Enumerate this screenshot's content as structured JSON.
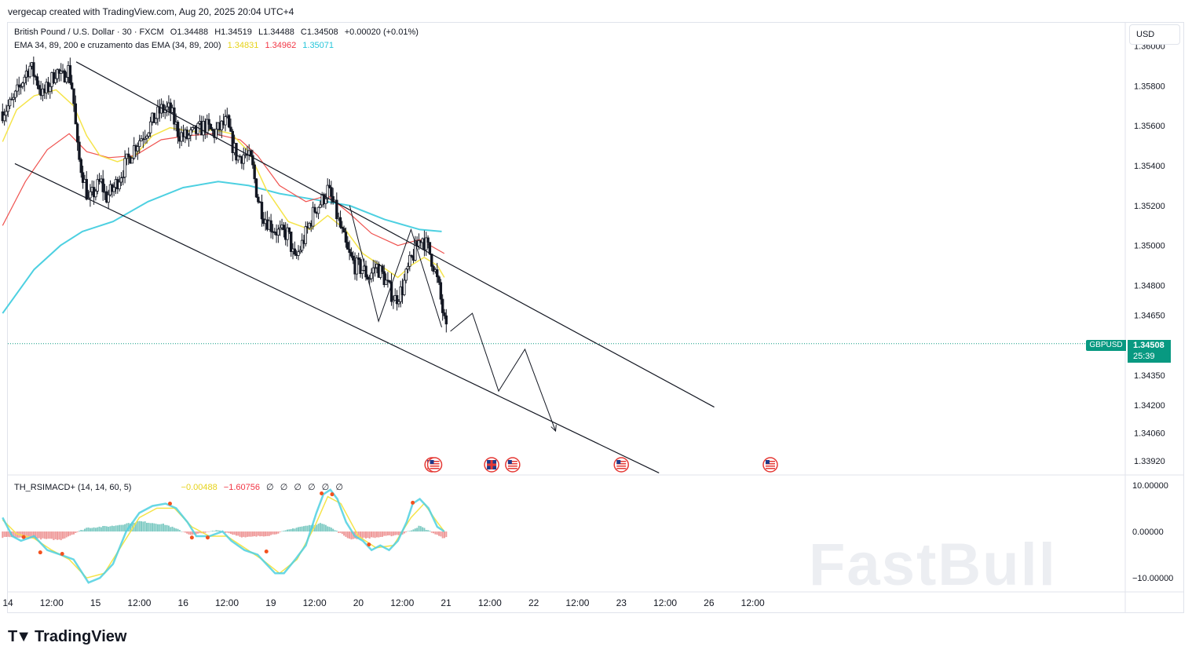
{
  "header": {
    "attribution": "vergecap created with TradingView.com, Aug 20, 2025 20:04 UTC+4"
  },
  "legend": {
    "symbol_line": "British Pound / U.S. Dollar · 30 · FXCM",
    "open": "O1.34488",
    "high": "H1.34519",
    "low": "L1.34488",
    "close": "C1.34508",
    "change": "+0.00020 (+0.01%)",
    "ema_title": "EMA 34, 89, 200 e cruzamento das EMA (34, 89, 200)",
    "ema_values": [
      {
        "value": "1.34831",
        "color": "#e6d21a"
      },
      {
        "value": "1.34962",
        "color": "#f23645"
      },
      {
        "value": "1.35071",
        "color": "#26c6da"
      }
    ],
    "indicator_title": "TH_RSIMACD+ (14, 14, 60, 5)",
    "indicator_values": [
      {
        "value": "−0.00488",
        "color": "#e6d21a"
      },
      {
        "value": "−1.60756",
        "color": "#f23645"
      },
      {
        "value": "∅",
        "color": "#131722"
      },
      {
        "value": "∅",
        "color": "#131722"
      },
      {
        "value": "∅",
        "color": "#131722"
      },
      {
        "value": "∅",
        "color": "#131722"
      },
      {
        "value": "∅",
        "color": "#131722"
      },
      {
        "value": "∅",
        "color": "#131722"
      }
    ]
  },
  "currency_button": "USD",
  "current_price": {
    "symbol": "GBPUSD",
    "price": "1.34508",
    "countdown": "25:39",
    "value": 1.34508
  },
  "branding": {
    "logo": "TradingView",
    "watermark": "FastBull"
  },
  "colors": {
    "up": "#131722",
    "ema34": "#f5e44a",
    "ema89": "#ef5350",
    "ema200": "#4dd0e1",
    "price_tag": "#089981",
    "hist_pos": "#80cbc4",
    "hist_neg": "#ef9a9a"
  },
  "chart_data": [
    {
      "type": "candlestick",
      "title": "British Pound / U.S. Dollar · 30 · FXCM",
      "ylabel": "USD",
      "ylim": [
        1.3385,
        1.3612
      ],
      "y_ticks": [
        {
          "value": 1.36,
          "label": "1.36000"
        },
        {
          "value": 1.358,
          "label": "1.35800"
        },
        {
          "value": 1.356,
          "label": "1.35600"
        },
        {
          "value": 1.354,
          "label": "1.35400"
        },
        {
          "value": 1.352,
          "label": "1.35200"
        },
        {
          "value": 1.35,
          "label": "1.35000"
        },
        {
          "value": 1.348,
          "label": "1.34800"
        },
        {
          "value": 1.3465,
          "label": "1.34650"
        },
        {
          "value": 1.3435,
          "label": "1.34350"
        },
        {
          "value": 1.342,
          "label": "1.34200"
        },
        {
          "value": 1.3406,
          "label": "1.34060"
        },
        {
          "value": 1.3392,
          "label": "1.33920"
        }
      ],
      "x_range_days": [
        14,
        26.75
      ],
      "x_ticks": [
        {
          "t": 14,
          "label": "14"
        },
        {
          "t": 14.5,
          "label": "12:00"
        },
        {
          "t": 15,
          "label": "15"
        },
        {
          "t": 15.5,
          "label": "12:00"
        },
        {
          "t": 16,
          "label": "16"
        },
        {
          "t": 16.5,
          "label": "12:00"
        },
        {
          "t": 17,
          "label": "19"
        },
        {
          "t": 17.5,
          "label": "12:00"
        },
        {
          "t": 18,
          "label": "20"
        },
        {
          "t": 18.5,
          "label": "12:00"
        },
        {
          "t": 19,
          "label": "21"
        },
        {
          "t": 19.5,
          "label": "12:00"
        },
        {
          "t": 20,
          "label": "22"
        },
        {
          "t": 20.5,
          "label": "12:00"
        },
        {
          "t": 21,
          "label": "23"
        },
        {
          "t": 21.5,
          "label": "12:00"
        },
        {
          "t": 22,
          "label": "26"
        },
        {
          "t": 22.5,
          "label": "12:00"
        }
      ],
      "close_path": [
        [
          13.94,
          1.3567
        ],
        [
          14.06,
          1.3572
        ],
        [
          14.13,
          1.3579
        ],
        [
          14.2,
          1.3586
        ],
        [
          14.25,
          1.359
        ],
        [
          14.32,
          1.3584
        ],
        [
          14.4,
          1.3575
        ],
        [
          14.47,
          1.358
        ],
        [
          14.55,
          1.3588
        ],
        [
          14.62,
          1.3583
        ],
        [
          14.68,
          1.359
        ],
        [
          14.74,
          1.3578
        ],
        [
          14.8,
          1.3545
        ],
        [
          14.86,
          1.3535
        ],
        [
          14.92,
          1.3522
        ],
        [
          15.0,
          1.3528
        ],
        [
          15.06,
          1.3532
        ],
        [
          15.12,
          1.3524
        ],
        [
          15.2,
          1.3528
        ],
        [
          15.28,
          1.3535
        ],
        [
          15.36,
          1.3542
        ],
        [
          15.45,
          1.355
        ],
        [
          15.55,
          1.3556
        ],
        [
          15.65,
          1.3562
        ],
        [
          15.75,
          1.3568
        ],
        [
          15.85,
          1.3568
        ],
        [
          15.95,
          1.3556
        ],
        [
          16.05,
          1.3554
        ],
        [
          16.15,
          1.3557
        ],
        [
          16.25,
          1.356
        ],
        [
          16.35,
          1.3556
        ],
        [
          16.45,
          1.356
        ],
        [
          16.5,
          1.3562
        ],
        [
          16.55,
          1.3552
        ],
        [
          16.62,
          1.3544
        ],
        [
          16.7,
          1.3546
        ],
        [
          16.78,
          1.3542
        ],
        [
          16.85,
          1.3524
        ],
        [
          16.92,
          1.3515
        ],
        [
          17.0,
          1.351
        ],
        [
          17.1,
          1.3506
        ],
        [
          17.2,
          1.3506
        ],
        [
          17.27,
          1.3492
        ],
        [
          17.35,
          1.35
        ],
        [
          17.42,
          1.3508
        ],
        [
          17.5,
          1.3518
        ],
        [
          17.58,
          1.3522
        ],
        [
          17.65,
          1.3528
        ],
        [
          17.72,
          1.352
        ],
        [
          17.8,
          1.3508
        ],
        [
          17.88,
          1.3496
        ],
        [
          17.96,
          1.349
        ],
        [
          18.05,
          1.3488
        ],
        [
          18.12,
          1.3484
        ],
        [
          18.2,
          1.349
        ],
        [
          18.28,
          1.3485
        ],
        [
          18.35,
          1.3478
        ],
        [
          18.42,
          1.3473
        ],
        [
          18.5,
          1.3478
        ],
        [
          18.58,
          1.349
        ],
        [
          18.65,
          1.3498
        ],
        [
          18.72,
          1.3505
        ],
        [
          18.8,
          1.3498
        ],
        [
          18.86,
          1.349
        ],
        [
          18.92,
          1.3478
        ],
        [
          18.98,
          1.3462
        ],
        [
          19.02,
          1.3452
        ]
      ],
      "ema34": [
        [
          13.94,
          1.3552
        ],
        [
          14.1,
          1.3568
        ],
        [
          14.3,
          1.3575
        ],
        [
          14.55,
          1.3578
        ],
        [
          14.75,
          1.357
        ],
        [
          14.9,
          1.3555
        ],
        [
          15.05,
          1.3545
        ],
        [
          15.25,
          1.3542
        ],
        [
          15.45,
          1.3545
        ],
        [
          15.65,
          1.3555
        ],
        [
          15.85,
          1.3559
        ],
        [
          16.1,
          1.3557
        ],
        [
          16.35,
          1.3558
        ],
        [
          16.55,
          1.3556
        ],
        [
          16.75,
          1.3547
        ],
        [
          16.95,
          1.3528
        ],
        [
          17.2,
          1.3512
        ],
        [
          17.45,
          1.3508
        ],
        [
          17.65,
          1.3515
        ],
        [
          17.85,
          1.3508
        ],
        [
          18.05,
          1.3496
        ],
        [
          18.25,
          1.349
        ],
        [
          18.45,
          1.3484
        ],
        [
          18.6,
          1.349
        ],
        [
          18.75,
          1.3494
        ],
        [
          18.9,
          1.349
        ],
        [
          18.98,
          1.3484
        ]
      ],
      "ema89": [
        [
          13.94,
          1.351
        ],
        [
          14.2,
          1.3532
        ],
        [
          14.45,
          1.3548
        ],
        [
          14.7,
          1.3556
        ],
        [
          14.9,
          1.3547
        ],
        [
          15.15,
          1.3544
        ],
        [
          15.45,
          1.3545
        ],
        [
          15.75,
          1.3553
        ],
        [
          16.05,
          1.3555
        ],
        [
          16.35,
          1.3556
        ],
        [
          16.65,
          1.3553
        ],
        [
          16.85,
          1.3545
        ],
        [
          17.1,
          1.353
        ],
        [
          17.4,
          1.3522
        ],
        [
          17.65,
          1.3525
        ],
        [
          17.9,
          1.3516
        ],
        [
          18.15,
          1.3506
        ],
        [
          18.45,
          1.35
        ],
        [
          18.7,
          1.3503
        ],
        [
          18.98,
          1.3496
        ]
      ],
      "ema200": [
        [
          13.94,
          1.3466
        ],
        [
          14.3,
          1.3488
        ],
        [
          14.6,
          1.35
        ],
        [
          14.85,
          1.3507
        ],
        [
          15.2,
          1.3512
        ],
        [
          15.6,
          1.3522
        ],
        [
          16.0,
          1.3529
        ],
        [
          16.4,
          1.3532
        ],
        [
          16.75,
          1.353
        ],
        [
          17.1,
          1.3526
        ],
        [
          17.5,
          1.3523
        ],
        [
          17.9,
          1.352
        ],
        [
          18.3,
          1.3513
        ],
        [
          18.7,
          1.3508
        ],
        [
          18.95,
          1.3507
        ]
      ],
      "channel": {
        "upper": [
          [
            14.78,
            1.3592
          ],
          [
            22.06,
            1.3419
          ]
        ],
        "lower": [
          [
            14.08,
            1.3541
          ],
          [
            21.43,
            1.3386
          ]
        ]
      },
      "pattern_lines": [
        [
          [
            17.9,
            1.352
          ],
          [
            18.23,
            1.3462
          ],
          [
            18.6,
            1.3508
          ],
          [
            18.95,
            1.3459
          ]
        ]
      ],
      "projection": [
        [
          19.05,
          1.3457
        ],
        [
          19.3,
          1.3466
        ],
        [
          19.6,
          1.3427
        ],
        [
          19.9,
          1.3448
        ],
        [
          20.25,
          1.3407
        ]
      ],
      "event_markers": [
        {
          "t": 18.84,
          "kind": "us"
        },
        {
          "t": 18.87,
          "kind": "us"
        },
        {
          "t": 19.52,
          "kind": "uk"
        },
        {
          "t": 19.76,
          "kind": "us"
        },
        {
          "t": 21.0,
          "kind": "us"
        },
        {
          "t": 22.7,
          "kind": "us"
        }
      ]
    },
    {
      "type": "line",
      "title": "TH_RSIMACD+ (14, 14, 60, 5)",
      "ylim": [
        -13.0,
        12.0
      ],
      "y_ticks": [
        {
          "value": 10,
          "label": "10.00000"
        },
        {
          "value": 0,
          "label": "0.00000"
        },
        {
          "value": -10,
          "label": "−10.00000"
        }
      ],
      "series_main": [
        [
          13.94,
          3
        ],
        [
          14.05,
          -1
        ],
        [
          14.15,
          -2
        ],
        [
          14.3,
          -1
        ],
        [
          14.45,
          -4
        ],
        [
          14.6,
          -5
        ],
        [
          14.75,
          -6
        ],
        [
          14.92,
          -11
        ],
        [
          15.05,
          -10
        ],
        [
          15.2,
          -7
        ],
        [
          15.35,
          0
        ],
        [
          15.5,
          4
        ],
        [
          15.65,
          5.5
        ],
        [
          15.8,
          6
        ],
        [
          15.92,
          5
        ],
        [
          16.05,
          2
        ],
        [
          16.15,
          -1
        ],
        [
          16.3,
          -1
        ],
        [
          16.45,
          0
        ],
        [
          16.55,
          -2
        ],
        [
          16.7,
          -4
        ],
        [
          16.85,
          -5
        ],
        [
          16.95,
          -7
        ],
        [
          17.05,
          -9
        ],
        [
          17.15,
          -9
        ],
        [
          17.28,
          -6
        ],
        [
          17.4,
          -3
        ],
        [
          17.52,
          4
        ],
        [
          17.6,
          8
        ],
        [
          17.68,
          9
        ],
        [
          17.76,
          7
        ],
        [
          17.86,
          2
        ],
        [
          17.96,
          -1
        ],
        [
          18.05,
          -2
        ],
        [
          18.15,
          -4
        ],
        [
          18.25,
          -3
        ],
        [
          18.35,
          -4
        ],
        [
          18.45,
          -2
        ],
        [
          18.55,
          2
        ],
        [
          18.62,
          6
        ],
        [
          18.7,
          7
        ],
        [
          18.8,
          5
        ],
        [
          18.9,
          1
        ],
        [
          18.98,
          0
        ]
      ],
      "series_signal": [
        [
          13.94,
          2.5
        ],
        [
          14.1,
          -0.5
        ],
        [
          14.3,
          -1.5
        ],
        [
          14.5,
          -4
        ],
        [
          14.7,
          -6
        ],
        [
          14.9,
          -10
        ],
        [
          15.1,
          -9
        ],
        [
          15.3,
          -3
        ],
        [
          15.5,
          3
        ],
        [
          15.7,
          5
        ],
        [
          15.9,
          5
        ],
        [
          16.1,
          1
        ],
        [
          16.3,
          -1
        ],
        [
          16.5,
          -1
        ],
        [
          16.7,
          -3.5
        ],
        [
          16.9,
          -6
        ],
        [
          17.1,
          -9
        ],
        [
          17.3,
          -6
        ],
        [
          17.5,
          1
        ],
        [
          17.65,
          7.5
        ],
        [
          17.8,
          6
        ],
        [
          18.0,
          -1
        ],
        [
          18.2,
          -3.5
        ],
        [
          18.4,
          -3
        ],
        [
          18.6,
          3
        ],
        [
          18.75,
          6
        ],
        [
          18.9,
          2
        ],
        [
          18.98,
          0
        ]
      ],
      "histogram": [
        [
          14.0,
          -1.2
        ],
        [
          14.3,
          -1.5
        ],
        [
          14.6,
          -1.8
        ],
        [
          14.9,
          0.8
        ],
        [
          15.2,
          1.2
        ],
        [
          15.5,
          2.2
        ],
        [
          15.8,
          1.5
        ],
        [
          16.1,
          -0.8
        ],
        [
          16.4,
          0.3
        ],
        [
          16.7,
          -1.3
        ],
        [
          17.0,
          -0.8
        ],
        [
          17.3,
          0.9
        ],
        [
          17.6,
          1.8
        ],
        [
          17.9,
          -1.6
        ],
        [
          18.2,
          -1.3
        ],
        [
          18.5,
          -0.6
        ],
        [
          18.7,
          1.2
        ],
        [
          18.95,
          -1.3
        ]
      ],
      "signal_dots": [
        [
          14.18,
          -1.2
        ],
        [
          14.37,
          -4.5
        ],
        [
          14.62,
          -4.8
        ],
        [
          15.85,
          6
        ],
        [
          16.1,
          -1.3
        ],
        [
          16.28,
          -1.3
        ],
        [
          16.95,
          -4.3
        ],
        [
          17.58,
          8.2
        ],
        [
          17.7,
          8.0
        ],
        [
          18.12,
          -2.8
        ],
        [
          18.62,
          6.2
        ]
      ]
    }
  ]
}
